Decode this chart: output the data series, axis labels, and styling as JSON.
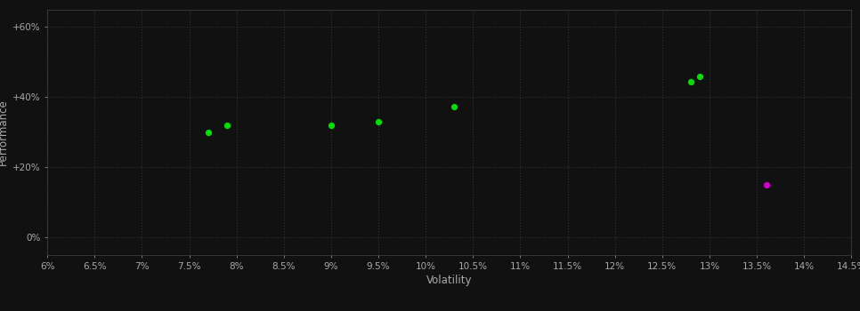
{
  "background_color": "#111111",
  "plot_bg_color": "#111111",
  "grid_color": "#333333",
  "grid_linestyle": "--",
  "xlabel": "Volatility",
  "ylabel": "Performance",
  "xlim": [
    0.06,
    0.145
  ],
  "ylim": [
    -0.05,
    0.65
  ],
  "xticks": [
    0.06,
    0.065,
    0.07,
    0.075,
    0.08,
    0.085,
    0.09,
    0.095,
    0.1,
    0.105,
    0.11,
    0.115,
    0.12,
    0.125,
    0.13,
    0.135,
    0.14,
    0.145
  ],
  "yticks": [
    0.0,
    0.2,
    0.4,
    0.6
  ],
  "ytick_labels": [
    "0%",
    "+20%",
    "+40%",
    "+60%"
  ],
  "xtick_labels": [
    "6%",
    "6.5%",
    "7%",
    "7.5%",
    "8%",
    "8.5%",
    "9%",
    "9.5%",
    "10%",
    "10.5%",
    "11%",
    "11.5%",
    "12%",
    "12.5%",
    "13%",
    "13.5%",
    "14%",
    "14.5%"
  ],
  "green_points": [
    [
      0.079,
      0.32
    ],
    [
      0.077,
      0.3
    ],
    [
      0.09,
      0.32
    ],
    [
      0.095,
      0.33
    ],
    [
      0.103,
      0.373
    ],
    [
      0.129,
      0.458
    ],
    [
      0.128,
      0.443
    ]
  ],
  "magenta_points": [
    [
      0.136,
      0.15
    ]
  ],
  "green_color": "#00dd00",
  "magenta_color": "#cc00cc",
  "point_size": 18,
  "tick_color": "#aaaaaa",
  "label_color": "#aaaaaa",
  "tick_fontsize": 7.5,
  "label_fontsize": 8.5
}
